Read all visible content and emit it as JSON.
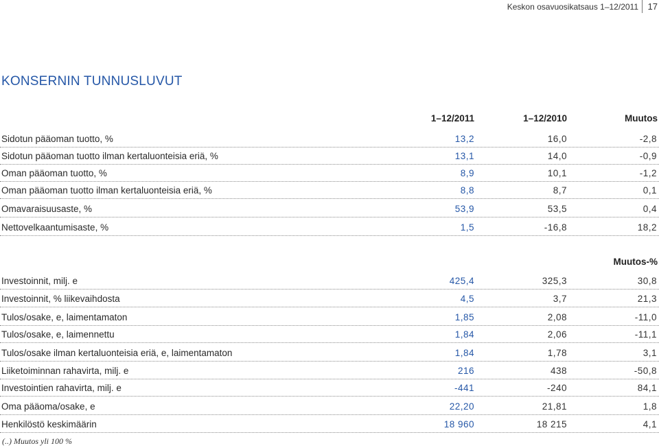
{
  "header": {
    "title": "Keskon osavuosikatsaus 1–12/2011",
    "page": "17"
  },
  "section_title": "KONSERNIN TUNNUSLUVUT",
  "columns": {
    "c1": "1–12/2011",
    "c2": "1–12/2010",
    "c3": "Muutos",
    "c3b": "Muutos-%"
  },
  "table1": [
    {
      "label": "Sidotun pääoman tuotto, %",
      "v1": "13,2",
      "v2": "16,0",
      "v3": "-2,8"
    },
    {
      "label": "Sidotun pääoman tuotto ilman kertaluonteisia eriä, %",
      "v1": "13,1",
      "v2": "14,0",
      "v3": "-0,9"
    },
    {
      "label": "Oman pääoman tuotto, %",
      "v1": "8,9",
      "v2": "10,1",
      "v3": "-1,2"
    },
    {
      "label": "Oman pääoman tuotto ilman kertaluonteisia eriä, %",
      "v1": "8,8",
      "v2": "8,7",
      "v3": "0,1"
    },
    {
      "label": "Omavaraisuusaste, %",
      "v1": "53,9",
      "v2": "53,5",
      "v3": "0,4"
    },
    {
      "label": "Nettovelkaantumisaste, %",
      "v1": "1,5",
      "v2": "-16,8",
      "v3": "18,2"
    }
  ],
  "table2": [
    {
      "label": "Investoinnit, milj. e",
      "v1": "425,4",
      "v2": "325,3",
      "v3": "30,8"
    },
    {
      "label": "Investoinnit, % liikevaihdosta",
      "v1": "4,5",
      "v2": "3,7",
      "v3": "21,3"
    },
    {
      "label": "Tulos/osake, e, laimentamaton",
      "v1": "1,85",
      "v2": "2,08",
      "v3": "-11,0"
    },
    {
      "label": "Tulos/osake, e, laimennettu",
      "v1": "1,84",
      "v2": "2,06",
      "v3": "-11,1"
    },
    {
      "label": "Tulos/osake ilman kertaluonteisia eriä, e, laimentamaton",
      "v1": "1,84",
      "v2": "1,78",
      "v3": "3,1"
    },
    {
      "label": "Liiketoiminnan rahavirta, milj. e",
      "v1": "216",
      "v2": "438",
      "v3": "-50,8"
    },
    {
      "label": "Investointien rahavirta, milj. e",
      "v1": "-441",
      "v2": "-240",
      "v3": "84,1"
    },
    {
      "label": "Oma pääoma/osake, e",
      "v1": "22,20",
      "v2": "21,81",
      "v3": "1,8"
    },
    {
      "label": "Henkilöstö keskimäärin",
      "v1": "18 960",
      "v2": "18 215",
      "v3": "4,1"
    }
  ],
  "footnote": "(..) Muutos yli 100 %"
}
